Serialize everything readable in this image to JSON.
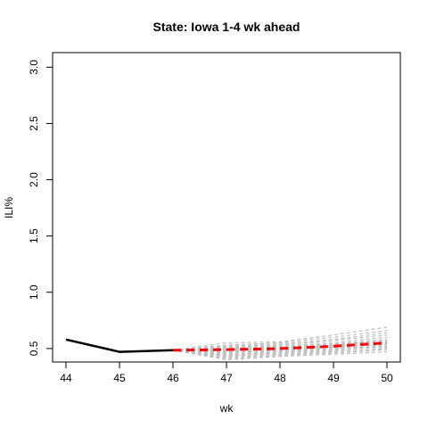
{
  "chart_data": {
    "type": "line",
    "title": "State: Iowa 1-4 wk ahead",
    "xlabel": "wk",
    "ylabel": "ILI%",
    "xlim": [
      43.75,
      50.25
    ],
    "ylim": [
      0.38,
      3.13
    ],
    "x_ticks": [
      "44",
      "45",
      "46",
      "47",
      "48",
      "49",
      "50"
    ],
    "y_ticks": [
      "0.5",
      "1.0",
      "1.5",
      "2.0",
      "2.5",
      "3.0"
    ],
    "observed": {
      "name": "observed",
      "color": "#000000",
      "x": [
        44,
        45,
        46
      ],
      "y": [
        0.58,
        0.47,
        0.485
      ]
    },
    "forecast_median": {
      "name": "forecast",
      "color": "#ff0000",
      "x": [
        46,
        47,
        48,
        49,
        50
      ],
      "y": [
        0.485,
        0.49,
        0.5,
        0.52,
        0.55
      ]
    },
    "forecast_samples": {
      "color": "#bebebe",
      "x": [
        46,
        47,
        48,
        49,
        50
      ],
      "paths": [
        [
          0.485,
          0.4,
          0.43,
          0.45,
          0.47
        ],
        [
          0.485,
          0.41,
          0.44,
          0.46,
          0.49
        ],
        [
          0.485,
          0.42,
          0.45,
          0.47,
          0.5
        ],
        [
          0.485,
          0.43,
          0.46,
          0.48,
          0.52
        ],
        [
          0.485,
          0.44,
          0.47,
          0.49,
          0.53
        ],
        [
          0.485,
          0.45,
          0.48,
          0.5,
          0.54
        ],
        [
          0.485,
          0.46,
          0.49,
          0.51,
          0.55
        ],
        [
          0.485,
          0.47,
          0.49,
          0.52,
          0.56
        ],
        [
          0.485,
          0.48,
          0.5,
          0.53,
          0.57
        ],
        [
          0.485,
          0.49,
          0.51,
          0.54,
          0.58
        ],
        [
          0.485,
          0.5,
          0.52,
          0.55,
          0.6
        ],
        [
          0.485,
          0.51,
          0.53,
          0.57,
          0.62
        ],
        [
          0.485,
          0.52,
          0.54,
          0.58,
          0.64
        ],
        [
          0.485,
          0.53,
          0.55,
          0.6,
          0.66
        ],
        [
          0.485,
          0.55,
          0.56,
          0.62,
          0.69
        ],
        [
          0.485,
          0.44,
          0.46,
          0.5,
          0.51
        ],
        [
          0.485,
          0.47,
          0.48,
          0.52,
          0.54
        ],
        [
          0.485,
          0.5,
          0.51,
          0.54,
          0.57
        ]
      ]
    }
  }
}
